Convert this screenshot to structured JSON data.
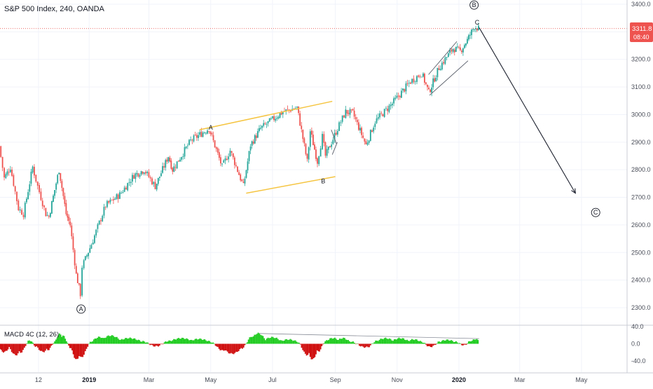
{
  "header": {
    "title": "S&P 500 Index, 240, OANDA",
    "macd_label": "MACD 4C (12, 26)"
  },
  "colors": {
    "up": "#26a69a",
    "down": "#ef5350",
    "channel": "#f5c542",
    "macd_up": "#22cc22",
    "macd_down": "#d01010",
    "price_line": "#e53935",
    "axis": "#4a4e59"
  },
  "price_badge": {
    "value": "3311.8",
    "countdown": "08:40"
  },
  "chart_data": [
    {
      "type": "candlestick",
      "title": "S&P 500 Index, 240, OANDA",
      "ylim": [
        2250,
        3420
      ],
      "y_ticks": [
        2300,
        2400,
        2500,
        2600,
        2700,
        2800,
        2900,
        3000,
        3100,
        3200,
        3300,
        3400
      ],
      "y_tick_labels": [
        "2300.0",
        "2400.0",
        "2500.0",
        "2600.0",
        "2700.0",
        "2800.0",
        "2900.0",
        "3000.0",
        "3100.0",
        "3200.0",
        "3300.0",
        "3400.0"
      ],
      "x_tick_labels": [
        {
          "label": "12",
          "x": "2018-11-12"
        },
        {
          "label": "2019",
          "x": "2019-01-01",
          "bold": true
        },
        {
          "label": "Mar",
          "x": "2019-03-01"
        },
        {
          "label": "May",
          "x": "2019-05-01"
        },
        {
          "label": "Jul",
          "x": "2019-07-01"
        },
        {
          "label": "Sep",
          "x": "2019-09-01"
        },
        {
          "label": "Nov",
          "x": "2019-11-01"
        },
        {
          "label": "2020",
          "x": "2020-01-01",
          "bold": true
        },
        {
          "label": "Mar",
          "x": "2020-03-01"
        },
        {
          "label": "May",
          "x": "2020-05-01"
        }
      ],
      "xlim": [
        "2018-10-05",
        "2020-06-15"
      ],
      "price_path": [
        [
          "2018-10-05",
          2885
        ],
        [
          "2018-10-10",
          2770
        ],
        [
          "2018-10-16",
          2810
        ],
        [
          "2018-10-24",
          2660
        ],
        [
          "2018-10-29",
          2640
        ],
        [
          "2018-11-07",
          2810
        ],
        [
          "2018-11-12",
          2740
        ],
        [
          "2018-11-20",
          2640
        ],
        [
          "2018-11-23",
          2630
        ],
        [
          "2018-12-03",
          2800
        ],
        [
          "2018-12-10",
          2640
        ],
        [
          "2018-12-14",
          2600
        ],
        [
          "2018-12-20",
          2420
        ],
        [
          "2018-12-24",
          2350
        ],
        [
          "2018-12-26",
          2450
        ],
        [
          "2019-01-04",
          2530
        ],
        [
          "2019-01-18",
          2670
        ],
        [
          "2019-02-01",
          2710
        ],
        [
          "2019-02-15",
          2780
        ],
        [
          "2019-02-25",
          2800
        ],
        [
          "2019-03-08",
          2740
        ],
        [
          "2019-03-21",
          2850
        ],
        [
          "2019-03-25",
          2800
        ],
        [
          "2019-04-12",
          2905
        ],
        [
          "2019-04-30",
          2950
        ],
        [
          "2019-05-13",
          2810
        ],
        [
          "2019-05-21",
          2870
        ],
        [
          "2019-06-03",
          2740
        ],
        [
          "2019-06-10",
          2890
        ],
        [
          "2019-06-20",
          2950
        ],
        [
          "2019-07-12",
          3010
        ],
        [
          "2019-07-26",
          3025
        ],
        [
          "2019-08-05",
          2830
        ],
        [
          "2019-08-08",
          2940
        ],
        [
          "2019-08-15",
          2830
        ],
        [
          "2019-08-20",
          2920
        ],
        [
          "2019-08-23",
          2850
        ],
        [
          "2019-09-04",
          2950
        ],
        [
          "2019-09-12",
          3010
        ],
        [
          "2019-09-19",
          3005
        ],
        [
          "2019-10-02",
          2890
        ],
        [
          "2019-10-11",
          2975
        ],
        [
          "2019-10-28",
          3040
        ],
        [
          "2019-11-15",
          3120
        ],
        [
          "2019-11-26",
          3150
        ],
        [
          "2019-12-03",
          3080
        ],
        [
          "2019-12-13",
          3170
        ],
        [
          "2019-12-27",
          3240
        ],
        [
          "2020-01-03",
          3230
        ],
        [
          "2020-01-10",
          3270
        ],
        [
          "2020-01-17",
          3320
        ],
        [
          "2020-01-21",
          3311.8
        ]
      ],
      "last_price": 3311.8,
      "wave_labels": [
        {
          "text": "A",
          "circled": true,
          "x": "2018-12-24",
          "y": 2295
        },
        {
          "text": "A",
          "circled": false,
          "x": "2019-05-01",
          "y": 2953
        },
        {
          "text": "B",
          "circled": false,
          "x": "2019-08-20",
          "y": 2759
        },
        {
          "text": "B",
          "circled": true,
          "x": "2020-01-16",
          "y": 3397
        },
        {
          "text": "C",
          "circled": false,
          "x": "2020-01-19",
          "y": 3334
        },
        {
          "text": "C",
          "circled": true,
          "x": "2020-05-15",
          "y": 2645
        }
      ],
      "annotations": {
        "channel_upper": [
          [
            "2019-04-20",
            2945
          ],
          [
            "2019-08-29",
            3048
          ]
        ],
        "channel_lower": [
          [
            "2019-06-05",
            2715
          ],
          [
            "2019-09-01",
            2775
          ]
        ],
        "small_wedge_upper": [
          [
            "2019-08-28",
            2945
          ],
          [
            "2019-09-02",
            2895
          ]
        ],
        "small_wedge_lower": [
          [
            "2019-08-29",
            2855
          ],
          [
            "2019-09-03",
            2900
          ]
        ],
        "ending_channel_upper": [
          [
            "2019-12-02",
            3145
          ],
          [
            "2019-12-30",
            3265
          ]
        ],
        "ending_channel_lower": [
          [
            "2019-12-03",
            3070
          ],
          [
            "2020-01-10",
            3195
          ]
        ],
        "projection_arrow": [
          [
            "2020-01-21",
            3315
          ],
          [
            "2020-04-25",
            2715
          ]
        ]
      }
    },
    {
      "type": "histogram",
      "title": "MACD 4C (12, 26)",
      "ylim": [
        -55,
        45
      ],
      "y_ticks": [
        40,
        0,
        -40
      ],
      "y_tick_labels": [
        "40.0",
        "0.0",
        "-40.0"
      ],
      "x_extent": [
        "2018-10-05",
        "2020-01-21"
      ],
      "segments": [
        [
          "2018-10-05",
          -22
        ],
        [
          "2018-10-14",
          -16
        ],
        [
          "2018-10-24",
          -34
        ],
        [
          "2018-11-03",
          14
        ],
        [
          "2018-11-10",
          -12
        ],
        [
          "2018-11-20",
          -24
        ],
        [
          "2018-11-28",
          8
        ],
        [
          "2018-12-05",
          32
        ],
        [
          "2018-12-14",
          -18
        ],
        [
          "2018-12-22",
          -50
        ],
        [
          "2019-01-02",
          6
        ],
        [
          "2019-01-15",
          22
        ],
        [
          "2019-02-01",
          16
        ],
        [
          "2019-02-22",
          10
        ],
        [
          "2019-03-08",
          -10
        ],
        [
          "2019-03-22",
          12
        ],
        [
          "2019-04-12",
          14
        ],
        [
          "2019-05-01",
          8
        ],
        [
          "2019-05-15",
          -26
        ],
        [
          "2019-05-31",
          -20
        ],
        [
          "2019-06-12",
          30
        ],
        [
          "2019-06-24",
          18
        ],
        [
          "2019-07-10",
          12
        ],
        [
          "2019-07-26",
          8
        ],
        [
          "2019-08-06",
          -42
        ],
        [
          "2019-08-14",
          -30
        ],
        [
          "2019-08-22",
          10
        ],
        [
          "2019-09-04",
          16
        ],
        [
          "2019-09-15",
          10
        ],
        [
          "2019-10-02",
          -14
        ],
        [
          "2019-10-12",
          12
        ],
        [
          "2019-10-28",
          14
        ],
        [
          "2019-11-12",
          12
        ],
        [
          "2019-11-25",
          8
        ],
        [
          "2019-12-04",
          -12
        ],
        [
          "2019-12-14",
          10
        ],
        [
          "2019-12-28",
          8
        ],
        [
          "2020-01-06",
          -6
        ],
        [
          "2020-01-14",
          12
        ],
        [
          "2020-01-21",
          10
        ]
      ],
      "divergence_line": [
        [
          "2019-06-18",
          24
        ],
        [
          "2020-01-21",
          12
        ]
      ]
    }
  ]
}
